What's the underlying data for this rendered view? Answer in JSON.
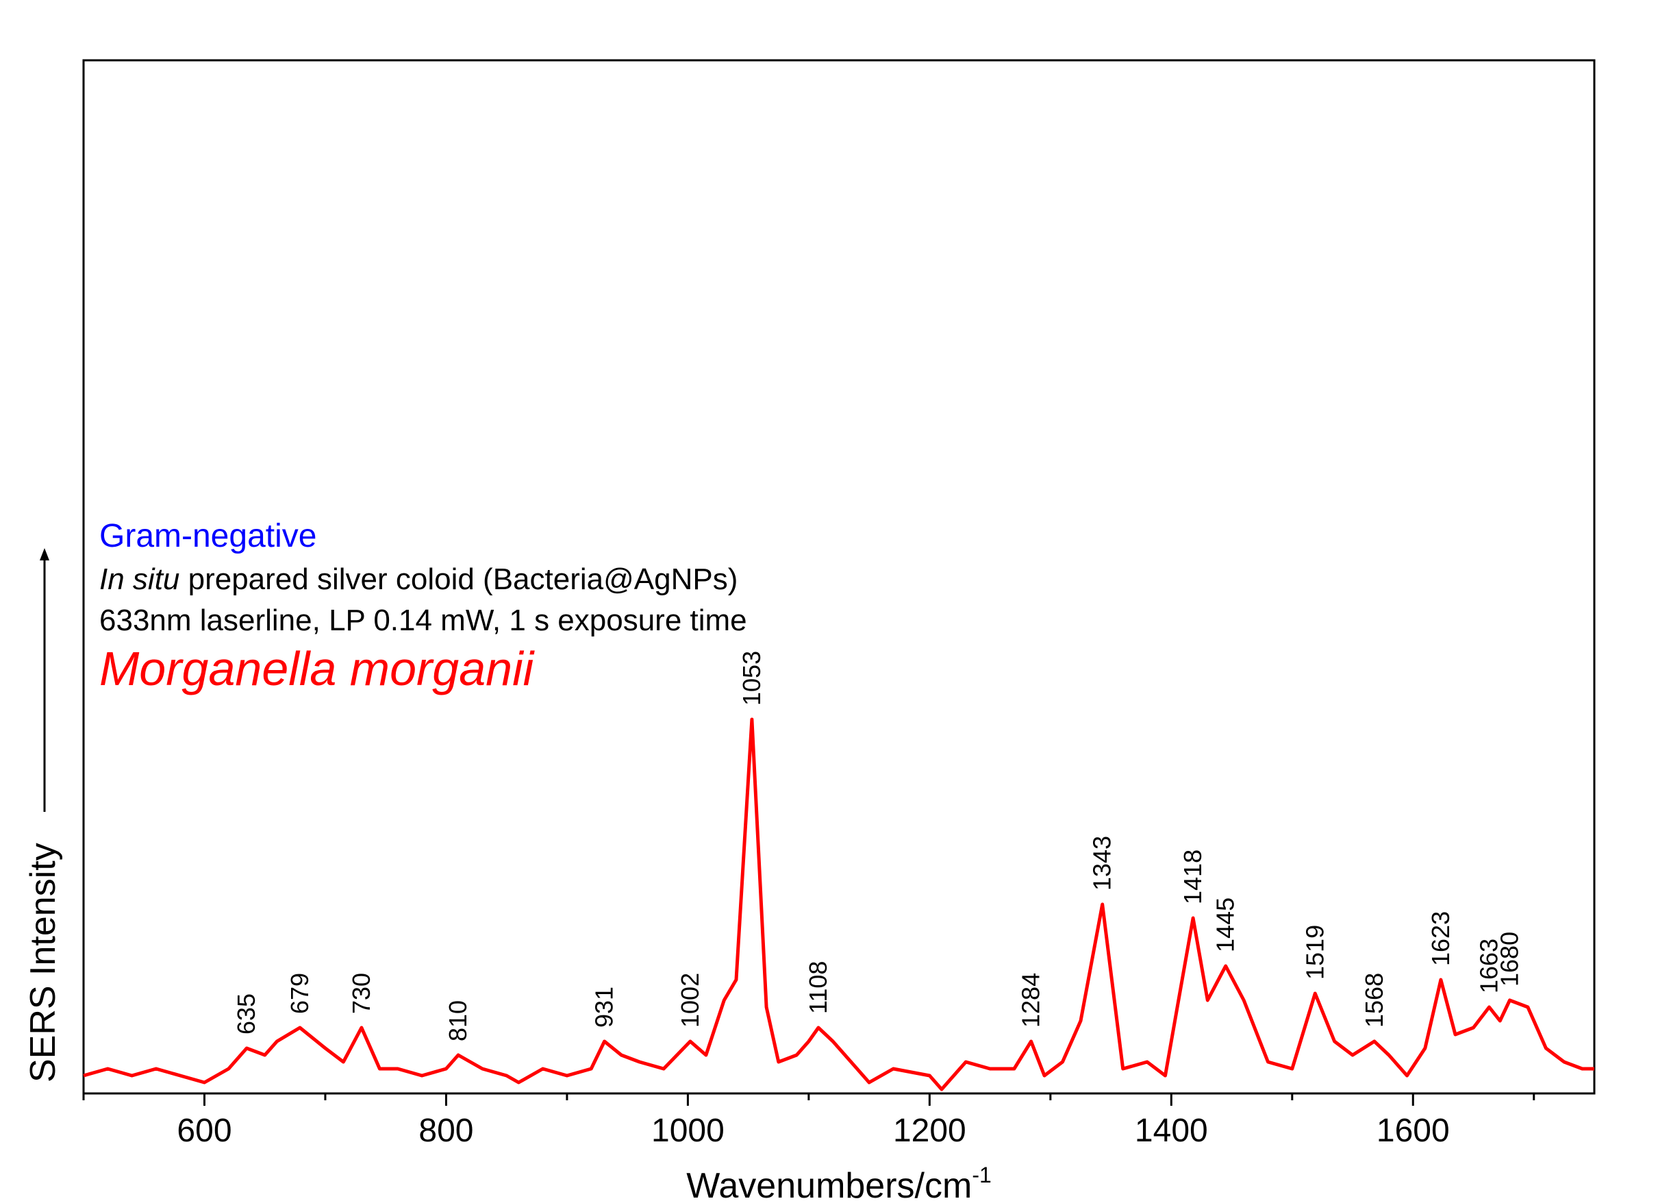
{
  "chart_data": {
    "type": "line",
    "xlabel": "Wavenumbers/cm",
    "xlabel_sup": "-1",
    "ylabel": "SERS Intensity",
    "xlim": [
      500,
      1750
    ],
    "ylim": [
      0,
      1
    ],
    "x_ticks": [
      600,
      800,
      1000,
      1200,
      1400,
      1600
    ],
    "x_tick_labels": [
      "600",
      "800",
      "1000",
      "1200",
      "1400",
      "1600"
    ],
    "grid": false,
    "series": [
      {
        "color": "#ff0000",
        "x": [
          500,
          520,
          540,
          560,
          580,
          600,
          620,
          635,
          650,
          660,
          679,
          700,
          715,
          730,
          745,
          760,
          780,
          800,
          810,
          830,
          850,
          860,
          880,
          900,
          920,
          931,
          945,
          960,
          980,
          1002,
          1015,
          1030,
          1040,
          1053,
          1065,
          1075,
          1090,
          1100,
          1108,
          1120,
          1140,
          1150,
          1170,
          1200,
          1210,
          1230,
          1250,
          1270,
          1284,
          1295,
          1310,
          1325,
          1343,
          1360,
          1380,
          1395,
          1405,
          1418,
          1430,
          1445,
          1460,
          1480,
          1500,
          1519,
          1535,
          1550,
          1568,
          1580,
          1595,
          1610,
          1623,
          1635,
          1650,
          1663,
          1672,
          1680,
          1695,
          1710,
          1725,
          1740,
          1750
        ],
        "y": [
          0.02,
          0.03,
          0.02,
          0.03,
          0.02,
          0.01,
          0.03,
          0.06,
          0.05,
          0.07,
          0.09,
          0.06,
          0.04,
          0.09,
          0.03,
          0.03,
          0.02,
          0.03,
          0.05,
          0.03,
          0.02,
          0.01,
          0.03,
          0.02,
          0.03,
          0.07,
          0.05,
          0.04,
          0.03,
          0.07,
          0.05,
          0.13,
          0.16,
          0.54,
          0.12,
          0.04,
          0.05,
          0.07,
          0.09,
          0.07,
          0.03,
          0.01,
          0.03,
          0.02,
          0.0,
          0.04,
          0.03,
          0.03,
          0.07,
          0.02,
          0.04,
          0.1,
          0.27,
          0.03,
          0.04,
          0.02,
          0.12,
          0.25,
          0.13,
          0.18,
          0.13,
          0.04,
          0.03,
          0.14,
          0.07,
          0.05,
          0.07,
          0.05,
          0.02,
          0.06,
          0.16,
          0.08,
          0.09,
          0.12,
          0.1,
          0.13,
          0.12,
          0.06,
          0.04,
          0.03,
          0.03
        ]
      }
    ],
    "peak_labels": [
      "635",
      "679",
      "730",
      "810",
      "931",
      "1002",
      "1053",
      "1108",
      "1284",
      "1343",
      "1418",
      "1445",
      "1519",
      "1568",
      "1623",
      "1663",
      "1680"
    ],
    "peak_positions": [
      635,
      679,
      730,
      810,
      931,
      1002,
      1053,
      1108,
      1284,
      1343,
      1418,
      1445,
      1519,
      1568,
      1623,
      1663,
      1680
    ],
    "annotations": {
      "gram": "Gram-negative",
      "line1_italic": "In situ",
      "line1_rest": " prepared silver coloid (Bacteria@AgNPs)",
      "line2": "633nm laserline, LP 0.14 mW, 1 s exposure time",
      "species": "Morganella morganii"
    }
  }
}
